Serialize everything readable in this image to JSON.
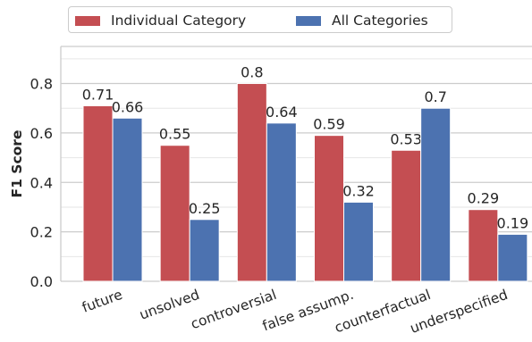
{
  "chart_data": {
    "type": "bar",
    "categories": [
      "future",
      "unsolved",
      "controversial",
      "false assump.",
      "counterfactual",
      "underspecified"
    ],
    "series": [
      {
        "name": "Individual Category",
        "values": [
          0.71,
          0.55,
          0.8,
          0.59,
          0.53,
          0.29
        ],
        "color": "#c44e52"
      },
      {
        "name": "All Categories",
        "values": [
          0.66,
          0.25,
          0.64,
          0.32,
          0.7,
          0.19
        ],
        "color": "#4c72b0"
      }
    ],
    "data_labels": [
      [
        "0.71",
        "0.55",
        "0.8",
        "0.59",
        "0.53",
        "0.29"
      ],
      [
        "0.66",
        "0.25",
        "0.64",
        "0.32",
        "0.7",
        "0.19"
      ]
    ],
    "ylabel": "F1 Score",
    "ylim": [
      0,
      0.95
    ],
    "yticks": [
      0.0,
      0.2,
      0.4,
      0.6,
      0.8
    ],
    "ytick_labels": [
      "0.0",
      "0.2",
      "0.4",
      "0.6",
      "0.8"
    ],
    "grid": true,
    "legend_position": "top"
  }
}
